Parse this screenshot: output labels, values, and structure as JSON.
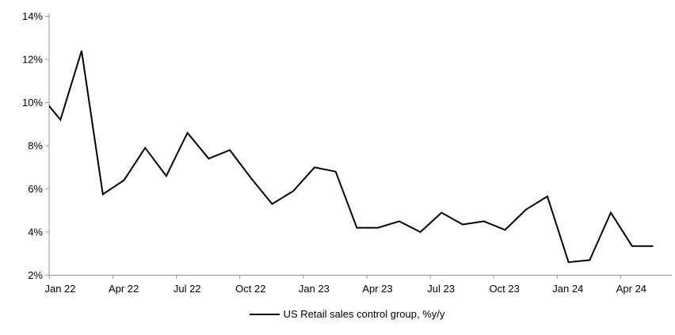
{
  "chart_data": {
    "type": "line",
    "title": "",
    "legend_label": "US Retail sales control group, %y/y",
    "legend_position": "bottom",
    "grid": false,
    "ylim": [
      2,
      14
    ],
    "y_tick_labels": [
      "2%",
      "4%",
      "6%",
      "8%",
      "10%",
      "12%",
      "14%"
    ],
    "x_tick_labels": [
      "Jan 22",
      "Apr 22",
      "Jul 22",
      "Oct 22",
      "Jan 23",
      "Apr 23",
      "Jul 23",
      "Oct 23",
      "Jan 24",
      "Apr 24"
    ],
    "x": [
      "Jan 22",
      "Feb 22",
      "Mar 22",
      "Apr 22",
      "May 22",
      "Jun 22",
      "Jul 22",
      "Aug 22",
      "Sep 22",
      "Oct 22",
      "Nov 22",
      "Dec 22",
      "Jan 23",
      "Feb 23",
      "Mar 23",
      "Apr 23",
      "May 23",
      "Jun 23",
      "Jul 23",
      "Aug 23",
      "Sep 23",
      "Oct 23",
      "Nov 23",
      "Dec 23",
      "Jan 24",
      "Feb 24",
      "Mar 24",
      "Apr 24",
      "May 24",
      "Jun 24"
    ],
    "series": [
      {
        "name": "US Retail sales control group, %y/y",
        "values": [
          10.4,
          9.2,
          12.4,
          5.75,
          6.4,
          7.9,
          6.6,
          8.6,
          7.4,
          7.8,
          6.5,
          5.3,
          5.9,
          7.0,
          6.8,
          4.2,
          4.2,
          4.5,
          4.0,
          4.9,
          4.35,
          4.5,
          4.1,
          5.05,
          5.65,
          2.6,
          2.7,
          4.9,
          3.35,
          3.35
        ],
        "color": "#000000"
      }
    ],
    "line_color": "#000000",
    "axis_color": "#999999",
    "label_color": "#000000"
  }
}
